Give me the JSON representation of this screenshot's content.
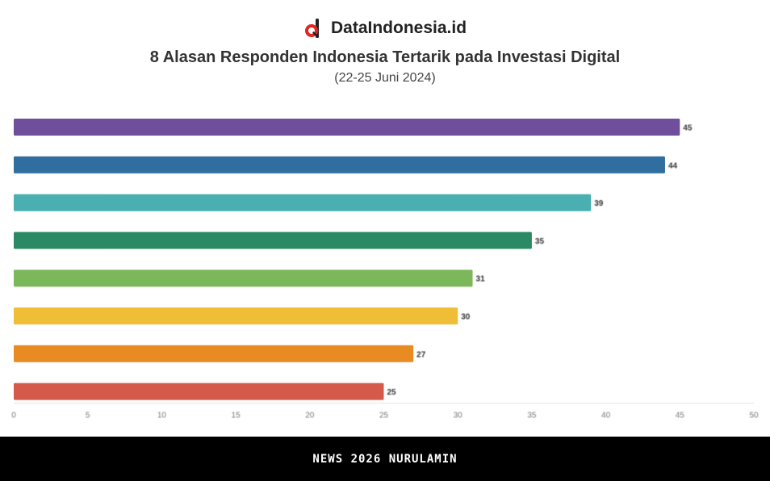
{
  "brand": {
    "name": "DataIndonesia.id",
    "logo_icon": "dataindonesia-logo-icon",
    "accent": "#e52420"
  },
  "footer": {
    "text": "NEWS 2026 NURULAMIN"
  },
  "chart_data": {
    "type": "bar",
    "orientation": "horizontal",
    "title": "8 Alasan Responden Indonesia Tertarik pada Investasi Digital",
    "subtitle": "(22-25 Juni 2024)",
    "categories": [
      "",
      "",
      "",
      "",
      "",
      "",
      "",
      ""
    ],
    "values": [
      45,
      44,
      39,
      35,
      31,
      30,
      27,
      25
    ],
    "value_labels": [
      "45",
      "44",
      "39",
      "35",
      "31",
      "30",
      "27",
      "25"
    ],
    "colors": [
      "#6f4e9c",
      "#2f6e9e",
      "#4aafb0",
      "#2b8a63",
      "#7cb85a",
      "#f0bd36",
      "#e88b23",
      "#d65a4c"
    ],
    "xlim": [
      0,
      50
    ],
    "x_ticks": [
      "0",
      "5",
      "10",
      "15",
      "20",
      "25",
      "30",
      "35",
      "40",
      "45",
      "50"
    ],
    "xlabel": "",
    "grid": false,
    "legend": "none"
  }
}
